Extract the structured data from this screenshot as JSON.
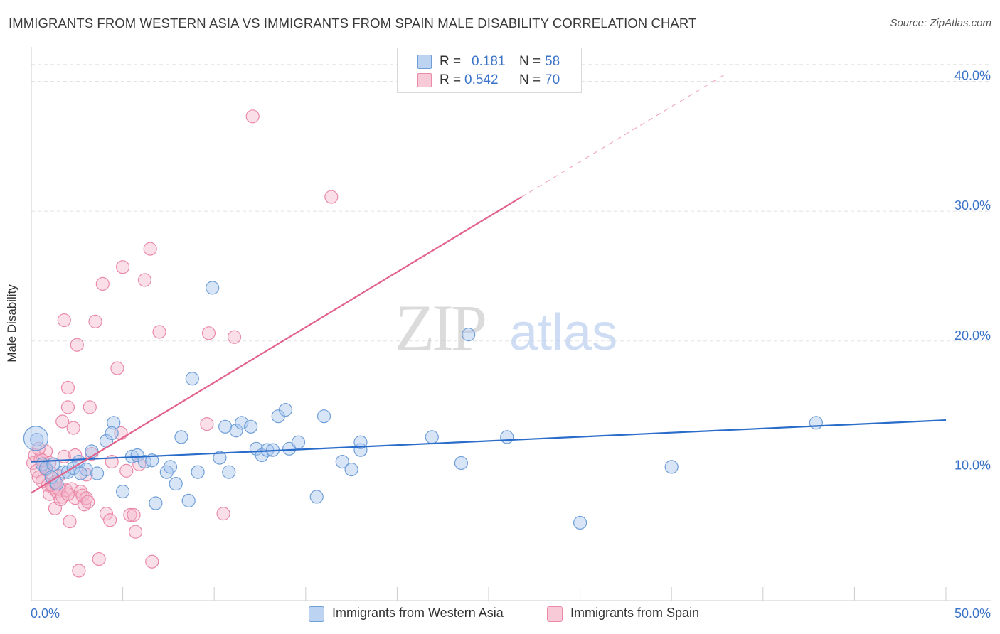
{
  "title": "IMMIGRANTS FROM WESTERN ASIA VS IMMIGRANTS FROM SPAIN MALE DISABILITY CORRELATION CHART",
  "source": "Source: ZipAtlas.com",
  "watermark": {
    "zip": "ZIP",
    "atlas": "atlas"
  },
  "legend": {
    "series1": {
      "r_label": "R =",
      "r_value": "0.181",
      "n_label": "N =",
      "n_value": "58"
    },
    "series2": {
      "r_label": "R =",
      "r_value": "0.542",
      "n_label": "N =",
      "n_value": "70"
    }
  },
  "bottom_legend": {
    "series1": "Immigrants from Western Asia",
    "series2": "Immigrants from Spain"
  },
  "colors": {
    "blue_fill": "#a9c6ee",
    "blue_stroke": "#6f9fd8",
    "blue_line": "#2a6cc9",
    "pink_fill": "#f5b8cb",
    "pink_stroke": "#ea8aa8",
    "pink_line": "#e2628c",
    "axis_label": "#3b73c8",
    "grid": "#e3e3e3"
  },
  "chart_data": {
    "type": "scatter",
    "title": "IMMIGRANTS FROM WESTERN ASIA VS IMMIGRANTS FROM SPAIN MALE DISABILITY CORRELATION CHART",
    "xlabel": "",
    "ylabel": "Male Disability",
    "xlim": [
      0,
      50
    ],
    "ylim": [
      0,
      42
    ],
    "x_tick_labels": [
      "0.0%",
      "50.0%"
    ],
    "y_ticks": [
      10,
      20,
      30,
      40
    ],
    "y_tick_labels": [
      "10.0%",
      "20.0%",
      "30.0%",
      "40.0%"
    ],
    "series": [
      {
        "name": "Immigrants from Western Asia",
        "R": 0.181,
        "N": 58,
        "trend": {
          "x": [
            0,
            50
          ],
          "y": [
            10.7,
            13.9
          ],
          "dashed_from": null
        },
        "points": [
          [
            0.3,
            12.4
          ],
          [
            0.6,
            10.5
          ],
          [
            0.8,
            10.2
          ],
          [
            1.1,
            9.5
          ],
          [
            1.4,
            9.0
          ],
          [
            1.8,
            9.9
          ],
          [
            2.0,
            9.9
          ],
          [
            2.3,
            10.2
          ],
          [
            2.6,
            10.7
          ],
          [
            3.0,
            10.1
          ],
          [
            3.3,
            11.5
          ],
          [
            3.6,
            9.8
          ],
          [
            4.1,
            12.3
          ],
          [
            4.5,
            13.7
          ],
          [
            4.4,
            12.9
          ],
          [
            5.0,
            8.4
          ],
          [
            5.5,
            11.1
          ],
          [
            5.8,
            11.2
          ],
          [
            6.2,
            10.7
          ],
          [
            6.6,
            10.8
          ],
          [
            6.8,
            7.5
          ],
          [
            7.4,
            9.9
          ],
          [
            7.6,
            10.3
          ],
          [
            7.9,
            9.0
          ],
          [
            8.2,
            12.6
          ],
          [
            8.6,
            7.7
          ],
          [
            8.8,
            17.1
          ],
          [
            9.1,
            9.9
          ],
          [
            9.9,
            24.1
          ],
          [
            10.3,
            11.0
          ],
          [
            10.6,
            13.4
          ],
          [
            10.8,
            9.9
          ],
          [
            11.2,
            13.1
          ],
          [
            11.5,
            13.7
          ],
          [
            12.0,
            13.4
          ],
          [
            12.3,
            11.7
          ],
          [
            12.6,
            11.2
          ],
          [
            12.9,
            11.6
          ],
          [
            13.2,
            11.6
          ],
          [
            13.5,
            14.2
          ],
          [
            13.9,
            14.7
          ],
          [
            14.1,
            11.7
          ],
          [
            14.6,
            12.2
          ],
          [
            15.6,
            8.0
          ],
          [
            16.0,
            14.2
          ],
          [
            17.0,
            10.7
          ],
          [
            17.5,
            10.1
          ],
          [
            18.0,
            11.6
          ],
          [
            18.0,
            12.2
          ],
          [
            21.9,
            12.6
          ],
          [
            23.5,
            10.6
          ],
          [
            23.9,
            20.5
          ],
          [
            26.0,
            12.6
          ],
          [
            30.0,
            6.0
          ],
          [
            35.0,
            10.3
          ],
          [
            42.9,
            13.7
          ],
          [
            1.2,
            10.5
          ],
          [
            2.7,
            9.8
          ]
        ]
      },
      {
        "name": "Immigrants from Spain",
        "R": 0.542,
        "N": 70,
        "trend": {
          "x": [
            0,
            26.8
          ],
          "y": [
            8.3,
            31.1
          ],
          "dashed_to": [
            38.0,
            40.6
          ]
        },
        "points": [
          [
            0.1,
            10.6
          ],
          [
            0.2,
            11.2
          ],
          [
            0.3,
            10.0
          ],
          [
            0.4,
            9.5
          ],
          [
            0.5,
            10.9
          ],
          [
            0.6,
            9.2
          ],
          [
            0.7,
            10.4
          ],
          [
            0.8,
            11.5
          ],
          [
            0.9,
            8.9
          ],
          [
            1.0,
            8.2
          ],
          [
            1.0,
            10.6
          ],
          [
            1.1,
            9.8
          ],
          [
            1.2,
            8.7
          ],
          [
            1.3,
            7.1
          ],
          [
            1.4,
            8.4
          ],
          [
            1.5,
            9.6
          ],
          [
            1.6,
            7.8
          ],
          [
            1.7,
            8.0
          ],
          [
            1.7,
            13.8
          ],
          [
            1.8,
            11.1
          ],
          [
            1.8,
            21.6
          ],
          [
            1.9,
            8.5
          ],
          [
            2.0,
            14.9
          ],
          [
            2.0,
            16.4
          ],
          [
            2.1,
            6.1
          ],
          [
            2.2,
            8.6
          ],
          [
            2.3,
            13.3
          ],
          [
            2.4,
            7.9
          ],
          [
            2.5,
            19.7
          ],
          [
            2.6,
            2.3
          ],
          [
            2.7,
            8.4
          ],
          [
            2.8,
            8.1
          ],
          [
            2.9,
            7.4
          ],
          [
            3.0,
            9.7
          ],
          [
            3.0,
            7.9
          ],
          [
            3.2,
            14.9
          ],
          [
            3.3,
            11.3
          ],
          [
            3.5,
            21.5
          ],
          [
            3.7,
            3.2
          ],
          [
            3.9,
            24.4
          ],
          [
            4.1,
            6.7
          ],
          [
            4.3,
            6.2
          ],
          [
            4.4,
            10.7
          ],
          [
            4.7,
            17.9
          ],
          [
            4.9,
            12.9
          ],
          [
            5.0,
            25.7
          ],
          [
            5.2,
            10.0
          ],
          [
            5.4,
            6.6
          ],
          [
            5.6,
            6.6
          ],
          [
            5.7,
            5.3
          ],
          [
            5.9,
            10.5
          ],
          [
            6.2,
            24.7
          ],
          [
            6.5,
            27.1
          ],
          [
            6.6,
            3.0
          ],
          [
            7.0,
            20.7
          ],
          [
            9.6,
            13.6
          ],
          [
            9.7,
            20.6
          ],
          [
            10.5,
            6.7
          ],
          [
            11.1,
            20.3
          ],
          [
            12.1,
            37.3
          ],
          [
            16.4,
            31.1
          ],
          [
            0.4,
            11.7
          ],
          [
            0.8,
            10.1
          ],
          [
            1.1,
            8.9
          ],
          [
            1.5,
            8.6
          ],
          [
            2.0,
            8.2
          ],
          [
            2.4,
            11.2
          ],
          [
            3.1,
            7.6
          ],
          [
            1.3,
            9.1
          ],
          [
            0.6,
            10.8
          ]
        ]
      }
    ]
  }
}
